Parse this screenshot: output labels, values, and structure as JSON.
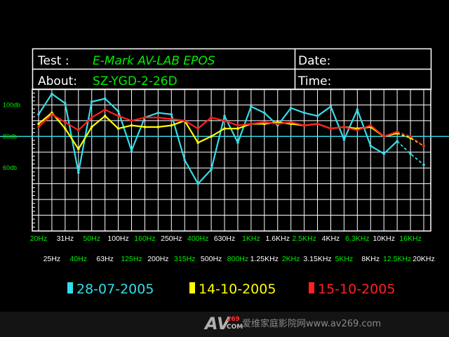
{
  "header": {
    "test_label": "Test :",
    "test_value": "E-Mark AV-LAB EPOS",
    "about_label": "About:",
    "about_value": "SZ-YGD-2-26D",
    "date_label": "Date:",
    "time_label": "Time:"
  },
  "chart_data": {
    "type": "line",
    "title": "",
    "xlabel": "",
    "ylabel": "",
    "ylim": [
      20,
      110
    ],
    "yticks": [
      {
        "label": "100db",
        "value": 100
      },
      {
        "label": "80db",
        "value": 80
      },
      {
        "label": "60db",
        "value": 60
      }
    ],
    "reference_line": 80,
    "grid": true,
    "legend_position": "bottom",
    "categories": [
      "20Hz",
      "25Hz",
      "31Hz",
      "40Hz",
      "50Hz",
      "63Hz",
      "100Hz",
      "125Hz",
      "160Hz",
      "200Hz",
      "250Hz",
      "315Hz",
      "400Hz",
      "500Hz",
      "630Hz",
      "800Hz",
      "1KHz",
      "1.25KHz",
      "1.6KHz",
      "2KHz",
      "2.5KHz",
      "3.15KHz",
      "4KHz",
      "5KHz",
      "6.3KHz",
      "8KHz",
      "10KHz",
      "12.5KHz",
      "16KHz",
      "20KHz"
    ],
    "category_colors": [
      "#00ee00",
      "#ffffff",
      "#ffffff",
      "#00ee00",
      "#00ee00",
      "#ffffff",
      "#ffffff",
      "#00ee00",
      "#00ee00",
      "#ffffff",
      "#ffffff",
      "#00ee00",
      "#00ee00",
      "#ffffff",
      "#ffffff",
      "#00ee00",
      "#00ee00",
      "#ffffff",
      "#ffffff",
      "#00ee00",
      "#00ee00",
      "#ffffff",
      "#ffffff",
      "#00ee00",
      "#00ee00",
      "#ffffff",
      "#ffffff",
      "#00ee00",
      "#00ee00",
      "#ffffff"
    ],
    "series": [
      {
        "name": "28-07-2005",
        "color": "#33dde8",
        "values": [
          94,
          107,
          101,
          57,
          102,
          104,
          96,
          71,
          92,
          95,
          94,
          65,
          50,
          59,
          93,
          76,
          99,
          95,
          87,
          98,
          95,
          93,
          99,
          78,
          97,
          74,
          69,
          77,
          69,
          62
        ],
        "dashed_from_index": 27
      },
      {
        "name": "14-10-2005",
        "color": "#ffff00",
        "values": [
          88,
          95,
          85,
          72,
          86,
          93,
          85,
          87,
          86,
          86,
          87,
          90,
          76,
          80,
          85,
          85,
          88,
          88,
          89,
          88,
          87,
          88,
          85,
          86,
          85,
          86,
          80,
          82,
          79,
          74
        ],
        "dashed_from_index": 27
      },
      {
        "name": "15-10-2005",
        "color": "#ff2020",
        "values": [
          86,
          94,
          89,
          84,
          92,
          97,
          93,
          90,
          92,
          92,
          91,
          90,
          85,
          92,
          90,
          87,
          88,
          89,
          88,
          89,
          87,
          88,
          85,
          86,
          84,
          87,
          80,
          83,
          80,
          74
        ],
        "dashed_from_index": 27
      }
    ]
  },
  "watermark": {
    "logo_top": "269",
    "logo_bottom": "COM",
    "text": "爱维家庭影院网www.av269.com"
  }
}
